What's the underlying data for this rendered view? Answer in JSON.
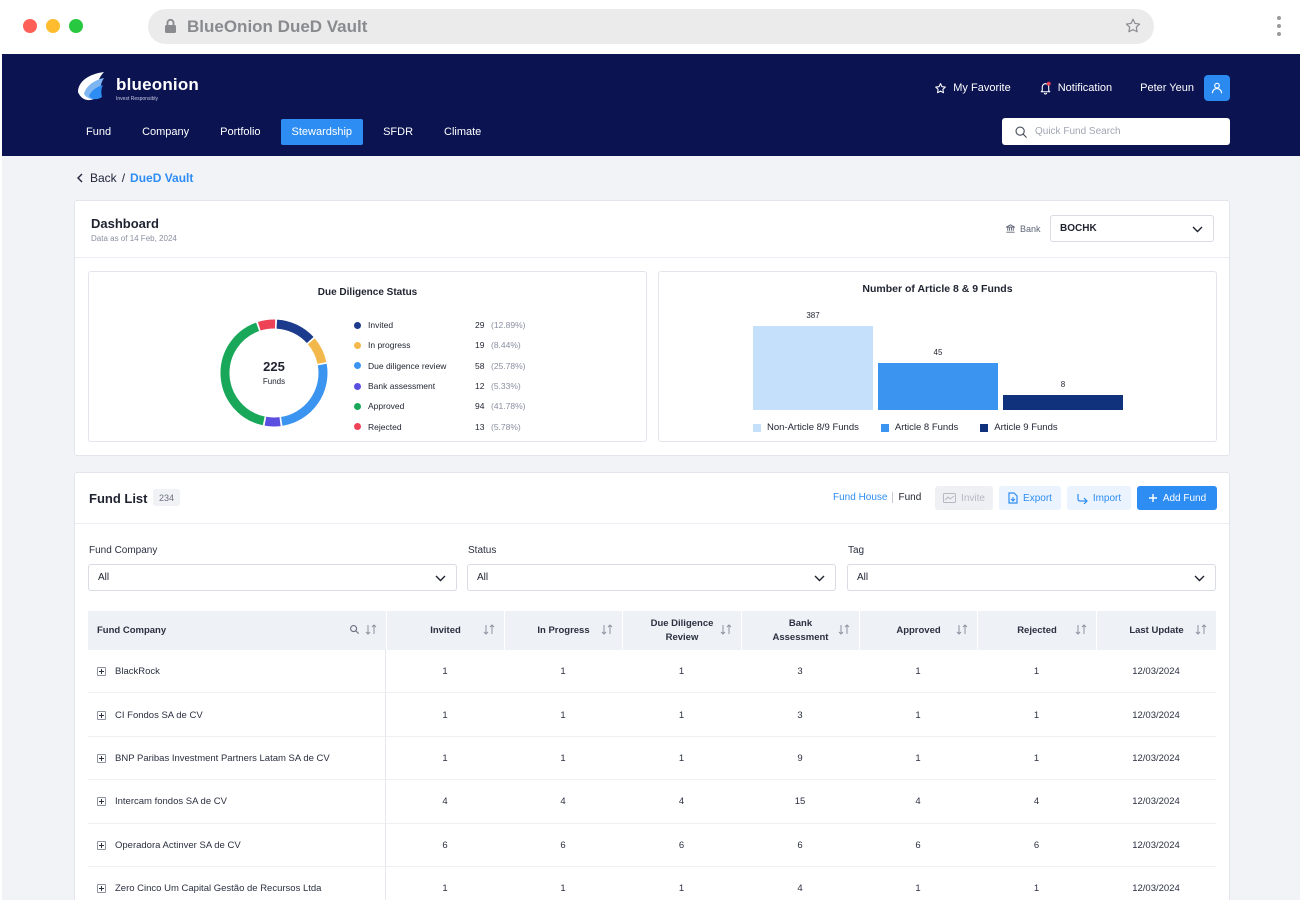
{
  "browser": {
    "url_text": "BlueOnion DueD Vault"
  },
  "brand": {
    "name": "blueonion",
    "tagline": "Invest Responsibly",
    "primary": "#0b1351",
    "accent": "#2e8df2"
  },
  "header": {
    "favorite": "My Favorite",
    "notification": "Notification",
    "user": "Peter Yeun",
    "menu": [
      "Fund",
      "Company",
      "Portfolio",
      "Stewardship",
      "SFDR",
      "Climate"
    ],
    "active_menu": "Stewardship",
    "search_placeholder": "Quick Fund Search"
  },
  "breadcrumb": {
    "back": "Back",
    "separator": "/",
    "current": "DueD Vault"
  },
  "dashboard": {
    "title": "Dashboard",
    "subtitle": "Data as of 14 Feb, 2024",
    "bank_label": "Bank",
    "bank_value": "BOCHK"
  },
  "dd_status": {
    "title": "Due Diligence Status",
    "total": "225",
    "total_label": "Funds",
    "items": [
      {
        "label": "Invited",
        "value": "29",
        "pct": "(12.89%)",
        "count": 29,
        "color": "#1d3b8c"
      },
      {
        "label": "In progress",
        "value": "19",
        "pct": "(8.44%)",
        "count": 19,
        "color": "#f2b84b"
      },
      {
        "label": "Due diligence review",
        "value": "58",
        "pct": "(25.78%)",
        "count": 58,
        "color": "#3b95f0"
      },
      {
        "label": "Bank assessment",
        "value": "12",
        "pct": "(5.33%)",
        "count": 12,
        "color": "#5b4fe0"
      },
      {
        "label": "Approved",
        "value": "94",
        "pct": "(41.78%)",
        "count": 94,
        "color": "#19a85a"
      },
      {
        "label": "Rejected",
        "value": "13",
        "pct": "(5.78%)",
        "count": 13,
        "color": "#ee4257"
      }
    ]
  },
  "chart_data": {
    "type": "bar",
    "title": "Number of Article 8 & 9 Funds",
    "categories": [
      "Non-Article 8/9 Funds",
      "Article 8 Funds",
      "Article 9 Funds"
    ],
    "values": [
      387,
      45,
      8
    ],
    "colors": [
      "#c4e0fb",
      "#3b95f0",
      "#10317c"
    ]
  },
  "fund_list": {
    "title": "Fund List",
    "count": "234",
    "toggle_active": "Fund House",
    "toggle_other": "Fund",
    "buttons": {
      "invite": "Invite",
      "export": "Export",
      "import": "Import",
      "add": "Add Fund"
    },
    "filters": [
      {
        "label": "Fund Company",
        "value": "All"
      },
      {
        "label": "Status",
        "value": "All"
      },
      {
        "label": "Tag",
        "value": "All"
      }
    ],
    "columns": [
      "Fund Company",
      "Invited",
      "In Progress",
      "Due Diligence\nReview",
      "Bank\nAssessment",
      "Approved",
      "Rejected",
      "Last Update"
    ],
    "rows": [
      [
        "BlackRock",
        "1",
        "1",
        "1",
        "3",
        "1",
        "1",
        "12/03/2024"
      ],
      [
        "CI Fondos SA de CV",
        "1",
        "1",
        "1",
        "3",
        "1",
        "1",
        "12/03/2024"
      ],
      [
        "BNP Paribas Investment Partners Latam SA de CV",
        "1",
        "1",
        "1",
        "9",
        "1",
        "1",
        "12/03/2024"
      ],
      [
        "Intercam fondos SA de CV",
        "4",
        "4",
        "4",
        "15",
        "4",
        "4",
        "12/03/2024"
      ],
      [
        "Operadora Actinver SA de CV",
        "6",
        "6",
        "6",
        "6",
        "6",
        "6",
        "12/03/2024"
      ],
      [
        "Zero Cinco Um Capital Gestão de Recursos Ltda",
        "1",
        "1",
        "1",
        "4",
        "1",
        "1",
        "12/03/2024"
      ]
    ]
  }
}
